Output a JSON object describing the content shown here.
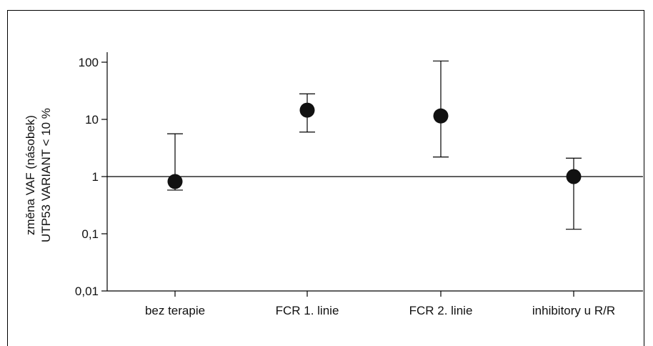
{
  "chart_data": {
    "type": "scatter",
    "title": "",
    "ylabel_lines": [
      "změna VAF (násobek)",
      "UTP53 VARIANT < 10 %"
    ],
    "xlabel": "",
    "y_scale": "log",
    "ylim": [
      0.01,
      100
    ],
    "y_ticks": [
      {
        "value": 100,
        "label": "100"
      },
      {
        "value": 10,
        "label": "10"
      },
      {
        "value": 1,
        "label": "1"
      },
      {
        "value": 0.1,
        "label": "0,1"
      },
      {
        "value": 0.01,
        "label": "0,01"
      }
    ],
    "reference_line": 1,
    "grid": false,
    "categories": [
      "bez terapie",
      "FCR 1. linie",
      "FCR 2. linie",
      "inhibitory u R/R"
    ],
    "points": [
      {
        "category": "bez terapie",
        "value": 0.82,
        "low": 0.58,
        "high": 5.6
      },
      {
        "category": "FCR 1. linie",
        "value": 14.5,
        "low": 6.0,
        "high": 28.0
      },
      {
        "category": "FCR 2. linie",
        "value": 11.5,
        "low": 2.2,
        "high": 105
      },
      {
        "category": "inhibitory u R/R",
        "value": 1.0,
        "low": 0.12,
        "high": 2.1
      }
    ]
  }
}
